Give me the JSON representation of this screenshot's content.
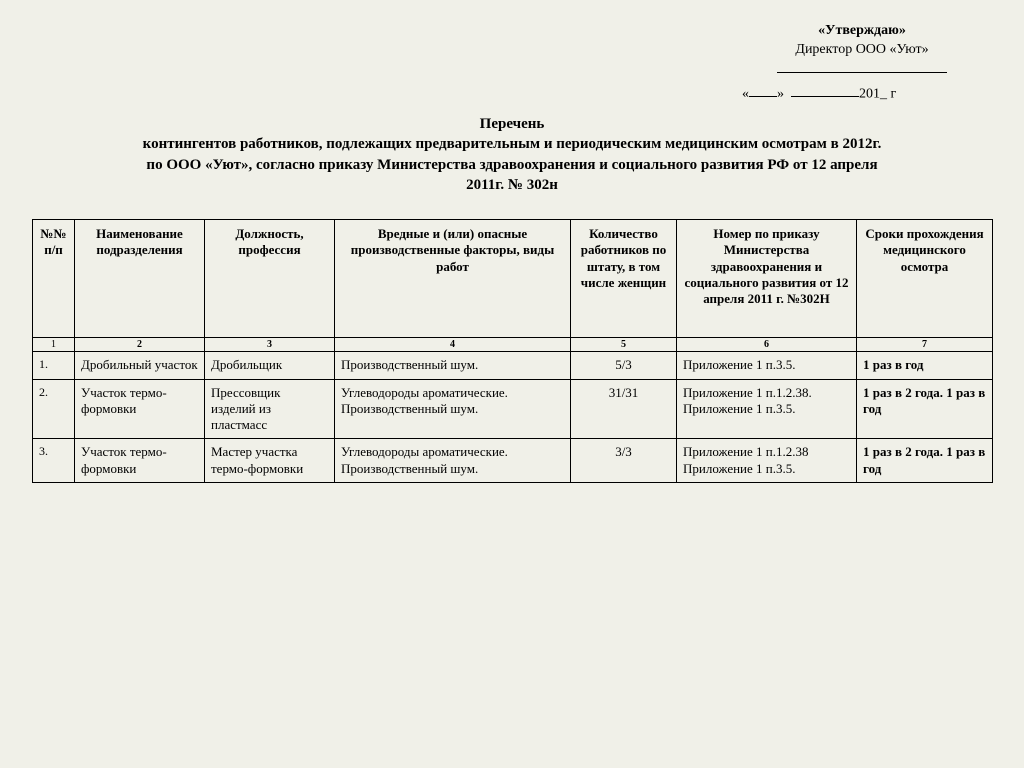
{
  "approval": {
    "line1": "«Утверждаю»",
    "line2": "Директор ООО «Уют»",
    "date_prefix": "«",
    "date_mid": "»",
    "date_year": "201_ г"
  },
  "title": {
    "l1": "Перечень",
    "l2": "контингентов работников, подлежащих предварительным и периодическим медицинским осмотрам в 2012г.",
    "l3": "по ООО «Уют», согласно  приказу  Министерства здравоохранения и социального развития РФ от 12 апреля",
    "l4": "2011г. № 302н"
  },
  "table": {
    "headers": [
      "№№ п/п",
      "Наименование подразделения",
      "Должность, профессия",
      "Вредные и (или) опасные производственные факторы, виды работ",
      "Количество работников по штату, в том числе женщин",
      "Номер по приказу Министерства здравоохранения и социального развития от 12 апреля 2011 г. №302Н",
      "Сроки прохождения медицинского осмотра"
    ],
    "colnums": [
      "1",
      "2",
      "3",
      "4",
      "5",
      "6",
      "7"
    ],
    "rows": [
      {
        "n": "1.",
        "dept": "Дробильный участок",
        "job": "Дробильщик",
        "factors": "Производственный шум.",
        "count": "5/3",
        "order": "Приложение 1 п.3.5.",
        "period": "1 раз в год"
      },
      {
        "n": "2.",
        "dept": "Участок термо-формовки",
        "job": "Прессовщик изделий из пластмасс",
        "factors": "Углеводороды ароматические.  Производственный шум.",
        "count": "31/31",
        "order": "Приложение 1 п.1.2.38.  Приложение 1 п.3.5.",
        "period": "1 раз в 2 года. 1 раз в год"
      },
      {
        "n": "3.",
        "dept": "Участок термо-формовки",
        "job": "Мастер участка термо-формовки",
        "factors": "Углеводороды ароматические.  Производственный шум.",
        "count": "3/3",
        "order": "Приложение 1 п.1.2.38  Приложение 1 п.3.5.",
        "period": "1 раз в 2 года.  1 раз в год"
      }
    ]
  }
}
